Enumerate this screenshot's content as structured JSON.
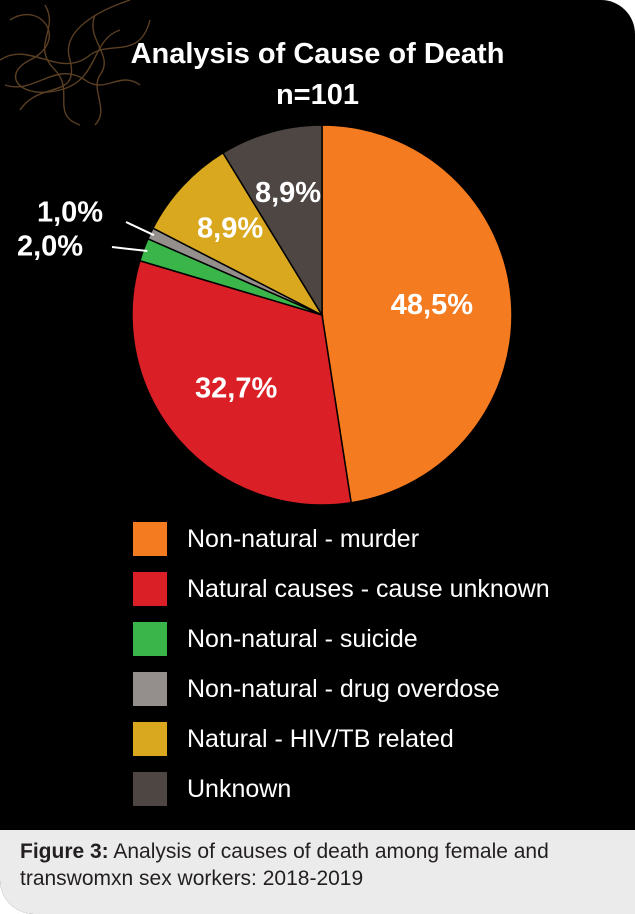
{
  "chart_data": {
    "type": "pie",
    "title": "Analysis of Cause of Death",
    "subtitle": "n=101",
    "slices": [
      {
        "label": "Non-natural - murder",
        "value": 48.5,
        "value_label": "48,5%",
        "color": "#f47b20"
      },
      {
        "label": "Natural causes - cause unknown",
        "value": 32.7,
        "value_label": "32,7%",
        "color": "#da1f26"
      },
      {
        "label": "Non-natural - suicide",
        "value": 2.0,
        "value_label": "2,0%",
        "color": "#3ab54a"
      },
      {
        "label": "Non-natural - drug overdose",
        "value": 1.0,
        "value_label": "1,0%",
        "color": "#948f8c"
      },
      {
        "label": "Natural - HIV/TB related",
        "value": 8.9,
        "value_label": "8,9%",
        "color": "#d9a81e"
      },
      {
        "label": "Unknown",
        "value": 8.9,
        "value_label": "8,9%",
        "color": "#4d4643"
      }
    ],
    "legend_placement": "bottom"
  },
  "caption": {
    "figure_label": "Figure 3:",
    "text": " Analysis of causes of death among female and transwomxn sex workers: 2018-2019"
  }
}
